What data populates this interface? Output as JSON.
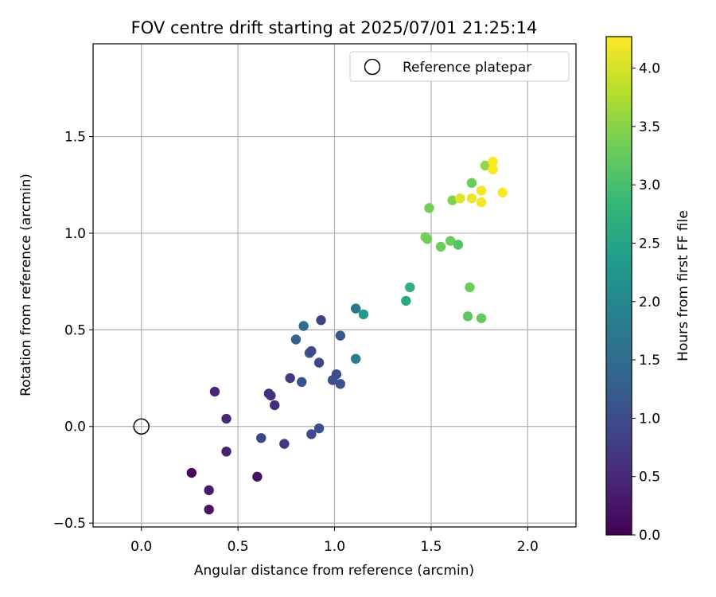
{
  "chart_data": {
    "type": "scatter",
    "title": "FOV centre drift starting at 2025/07/01 21:25:14",
    "xlabel": "Angular distance from reference (arcmin)",
    "ylabel": "Rotation from reference (arcmin)",
    "xlim": [
      -0.25,
      2.25
    ],
    "ylim": [
      -0.52,
      1.98
    ],
    "xticks": [
      0.0,
      0.5,
      1.0,
      1.5,
      2.0
    ],
    "xtick_labels": [
      "0.0",
      "0.5",
      "1.0",
      "1.5",
      "2.0"
    ],
    "yticks": [
      -0.5,
      0.0,
      0.5,
      1.0,
      1.5
    ],
    "ytick_labels": [
      "−0.5",
      "0.0",
      "0.5",
      "1.0",
      "1.5"
    ],
    "grid": true,
    "legend": {
      "position": "top-right",
      "entries": [
        {
          "label": "Reference platepar",
          "marker": "open-circle"
        }
      ]
    },
    "reference_point": {
      "x": 0.0,
      "y": 0.0
    },
    "colorbar": {
      "label": "Hours from first FF file",
      "range": [
        0.0,
        4.27
      ],
      "colormap": "viridis",
      "ticks": [
        0.0,
        0.5,
        1.0,
        1.5,
        2.0,
        2.5,
        3.0,
        3.5,
        4.0
      ],
      "tick_labels": [
        "0.0",
        "0.5",
        "1.0",
        "1.5",
        "2.0",
        "2.5",
        "3.0",
        "3.5",
        "4.0"
      ]
    },
    "series": [
      {
        "points": [
          {
            "x": 0.26,
            "y": -0.24,
            "c": 0.05
          },
          {
            "x": 0.35,
            "y": -0.43,
            "c": 0.25
          },
          {
            "x": 0.35,
            "y": -0.33,
            "c": 0.3
          },
          {
            "x": 0.6,
            "y": -0.26,
            "c": 0.2
          },
          {
            "x": 0.38,
            "y": 0.18,
            "c": 0.45
          },
          {
            "x": 0.44,
            "y": 0.04,
            "c": 0.5
          },
          {
            "x": 0.44,
            "y": -0.13,
            "c": 0.4
          },
          {
            "x": 0.66,
            "y": 0.17,
            "c": 0.55
          },
          {
            "x": 0.67,
            "y": 0.16,
            "c": 0.6
          },
          {
            "x": 0.69,
            "y": 0.11,
            "c": 0.55
          },
          {
            "x": 0.62,
            "y": -0.06,
            "c": 0.9
          },
          {
            "x": 0.74,
            "y": -0.09,
            "c": 0.7
          },
          {
            "x": 0.77,
            "y": 0.25,
            "c": 0.75
          },
          {
            "x": 0.83,
            "y": 0.23,
            "c": 1.1
          },
          {
            "x": 0.88,
            "y": -0.04,
            "c": 0.95
          },
          {
            "x": 0.92,
            "y": -0.01,
            "c": 1.05
          },
          {
            "x": 0.8,
            "y": 0.45,
            "c": 1.3
          },
          {
            "x": 0.84,
            "y": 0.52,
            "c": 1.5
          },
          {
            "x": 0.87,
            "y": 0.38,
            "c": 1.15
          },
          {
            "x": 0.88,
            "y": 0.39,
            "c": 0.95
          },
          {
            "x": 0.93,
            "y": 0.55,
            "c": 0.85
          },
          {
            "x": 0.92,
            "y": 0.33,
            "c": 0.9
          },
          {
            "x": 0.99,
            "y": 0.24,
            "c": 1.0
          },
          {
            "x": 1.01,
            "y": 0.27,
            "c": 1.05
          },
          {
            "x": 1.03,
            "y": 0.22,
            "c": 1.1
          },
          {
            "x": 1.03,
            "y": 0.47,
            "c": 1.15
          },
          {
            "x": 1.11,
            "y": 0.61,
            "c": 1.7
          },
          {
            "x": 1.11,
            "y": 0.35,
            "c": 1.8
          },
          {
            "x": 1.15,
            "y": 0.58,
            "c": 2.3
          },
          {
            "x": 1.37,
            "y": 0.65,
            "c": 2.6
          },
          {
            "x": 1.39,
            "y": 0.72,
            "c": 2.7
          },
          {
            "x": 1.47,
            "y": 0.98,
            "c": 3.4
          },
          {
            "x": 1.48,
            "y": 0.97,
            "c": 3.35
          },
          {
            "x": 1.49,
            "y": 1.13,
            "c": 3.35
          },
          {
            "x": 1.55,
            "y": 0.93,
            "c": 3.3
          },
          {
            "x": 1.6,
            "y": 0.96,
            "c": 3.3
          },
          {
            "x": 1.61,
            "y": 1.17,
            "c": 3.45
          },
          {
            "x": 1.64,
            "y": 0.94,
            "c": 3.1
          },
          {
            "x": 1.65,
            "y": 1.18,
            "c": 4.1
          },
          {
            "x": 1.7,
            "y": 0.72,
            "c": 3.3
          },
          {
            "x": 1.69,
            "y": 0.57,
            "c": 3.2
          },
          {
            "x": 1.71,
            "y": 1.18,
            "c": 4.15
          },
          {
            "x": 1.71,
            "y": 1.26,
            "c": 3.3
          },
          {
            "x": 1.76,
            "y": 0.56,
            "c": 3.25
          },
          {
            "x": 1.76,
            "y": 1.22,
            "c": 4.2
          },
          {
            "x": 1.76,
            "y": 1.16,
            "c": 4.2
          },
          {
            "x": 1.78,
            "y": 1.35,
            "c": 3.6
          },
          {
            "x": 1.82,
            "y": 1.37,
            "c": 4.25
          },
          {
            "x": 1.82,
            "y": 1.33,
            "c": 4.25
          },
          {
            "x": 1.87,
            "y": 1.21,
            "c": 4.25
          }
        ]
      }
    ]
  }
}
